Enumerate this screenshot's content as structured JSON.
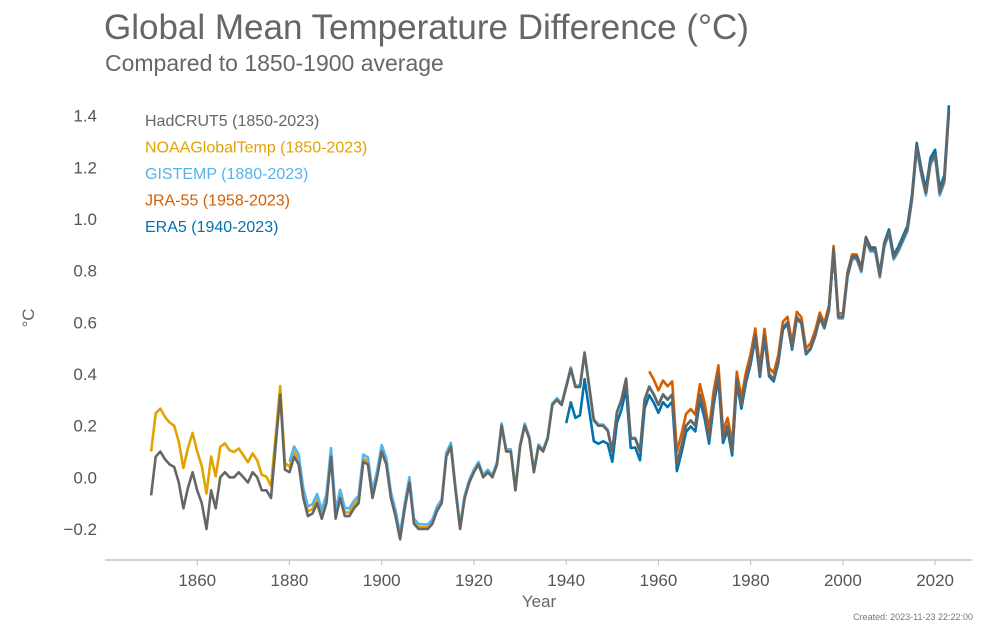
{
  "chart_data": {
    "type": "line",
    "title": "Global Mean Temperature Difference (°C)",
    "subtitle": "Compared to 1850-1900 average",
    "xlabel": "Year",
    "ylabel": "°C",
    "xlim": [
      1840,
      2028
    ],
    "ylim": [
      -0.32,
      1.48
    ],
    "x_ticks": [
      1860,
      1880,
      1900,
      1920,
      1940,
      1960,
      1980,
      2000,
      2020
    ],
    "y_ticks": [
      -0.2,
      0.0,
      0.2,
      0.4,
      0.6,
      0.8,
      1.0,
      1.2,
      1.4
    ],
    "y_tick_labels": [
      "−0.2",
      "0.0",
      "0.2",
      "0.4",
      "0.6",
      "0.8",
      "1.0",
      "1.2",
      "1.4"
    ],
    "grid": false,
    "legend_placement": "top-left",
    "anchor_points": [
      [
        1850,
        -0.07
      ],
      [
        1851,
        0.08
      ],
      [
        1852,
        0.1
      ],
      [
        1853,
        0.07
      ],
      [
        1854,
        0.05
      ],
      [
        1855,
        0.04
      ],
      [
        1856,
        -0.02
      ],
      [
        1857,
        -0.12
      ],
      [
        1858,
        -0.04
      ],
      [
        1859,
        0.02
      ],
      [
        1860,
        -0.05
      ],
      [
        1861,
        -0.1
      ],
      [
        1862,
        -0.2
      ],
      [
        1863,
        -0.05
      ],
      [
        1864,
        -0.12
      ],
      [
        1865,
        0.0
      ],
      [
        1866,
        0.02
      ],
      [
        1867,
        0.0
      ],
      [
        1868,
        0.0
      ],
      [
        1869,
        0.02
      ],
      [
        1870,
        0.0
      ],
      [
        1871,
        -0.02
      ],
      [
        1872,
        0.02
      ],
      [
        1873,
        0.0
      ],
      [
        1874,
        -0.05
      ],
      [
        1875,
        -0.05
      ],
      [
        1876,
        -0.08
      ],
      [
        1877,
        0.12
      ],
      [
        1878,
        0.32
      ],
      [
        1879,
        0.03
      ],
      [
        1880,
        0.02
      ],
      [
        1881,
        0.08
      ],
      [
        1882,
        0.05
      ],
      [
        1883,
        -0.08
      ],
      [
        1884,
        -0.15
      ],
      [
        1885,
        -0.14
      ],
      [
        1886,
        -0.1
      ],
      [
        1887,
        -0.16
      ],
      [
        1888,
        -0.1
      ],
      [
        1889,
        0.08
      ],
      [
        1890,
        -0.16
      ],
      [
        1891,
        -0.08
      ],
      [
        1892,
        -0.15
      ],
      [
        1893,
        -0.15
      ],
      [
        1894,
        -0.12
      ],
      [
        1895,
        -0.1
      ],
      [
        1896,
        0.06
      ],
      [
        1897,
        0.05
      ],
      [
        1898,
        -0.08
      ],
      [
        1899,
        0.0
      ],
      [
        1900,
        0.1
      ],
      [
        1901,
        0.05
      ],
      [
        1902,
        -0.08
      ],
      [
        1903,
        -0.15
      ],
      [
        1904,
        -0.24
      ],
      [
        1905,
        -0.12
      ],
      [
        1906,
        -0.02
      ],
      [
        1907,
        -0.18
      ],
      [
        1908,
        -0.2
      ],
      [
        1909,
        -0.2
      ],
      [
        1910,
        -0.2
      ],
      [
        1911,
        -0.18
      ],
      [
        1912,
        -0.13
      ],
      [
        1913,
        -0.1
      ],
      [
        1914,
        0.08
      ],
      [
        1915,
        0.12
      ],
      [
        1916,
        -0.05
      ],
      [
        1917,
        -0.2
      ],
      [
        1918,
        -0.08
      ],
      [
        1919,
        -0.02
      ],
      [
        1920,
        0.02
      ],
      [
        1921,
        0.05
      ],
      [
        1922,
        0.0
      ],
      [
        1923,
        0.02
      ],
      [
        1924,
        0.0
      ],
      [
        1925,
        0.05
      ],
      [
        1926,
        0.2
      ],
      [
        1927,
        0.1
      ],
      [
        1928,
        0.1
      ],
      [
        1929,
        -0.05
      ],
      [
        1930,
        0.12
      ],
      [
        1931,
        0.2
      ],
      [
        1932,
        0.15
      ],
      [
        1933,
        0.02
      ],
      [
        1934,
        0.12
      ],
      [
        1935,
        0.1
      ],
      [
        1936,
        0.15
      ],
      [
        1937,
        0.28
      ],
      [
        1938,
        0.3
      ],
      [
        1939,
        0.28
      ],
      [
        1940,
        0.35
      ],
      [
        1941,
        0.42
      ],
      [
        1942,
        0.35
      ],
      [
        1943,
        0.35
      ],
      [
        1944,
        0.48
      ],
      [
        1945,
        0.35
      ],
      [
        1946,
        0.22
      ],
      [
        1947,
        0.2
      ],
      [
        1948,
        0.2
      ],
      [
        1949,
        0.18
      ],
      [
        1950,
        0.1
      ],
      [
        1951,
        0.25
      ],
      [
        1952,
        0.3
      ],
      [
        1953,
        0.38
      ],
      [
        1954,
        0.15
      ],
      [
        1955,
        0.15
      ],
      [
        1956,
        0.1
      ],
      [
        1957,
        0.3
      ],
      [
        1958,
        0.35
      ],
      [
        1959,
        0.32
      ],
      [
        1960,
        0.28
      ],
      [
        1961,
        0.32
      ],
      [
        1962,
        0.3
      ],
      [
        1963,
        0.32
      ],
      [
        1964,
        0.05
      ],
      [
        1965,
        0.12
      ],
      [
        1966,
        0.2
      ],
      [
        1967,
        0.22
      ],
      [
        1968,
        0.2
      ],
      [
        1969,
        0.32
      ],
      [
        1970,
        0.25
      ],
      [
        1971,
        0.15
      ],
      [
        1972,
        0.3
      ],
      [
        1973,
        0.4
      ],
      [
        1974,
        0.15
      ],
      [
        1975,
        0.2
      ],
      [
        1976,
        0.1
      ],
      [
        1977,
        0.38
      ],
      [
        1978,
        0.28
      ],
      [
        1979,
        0.38
      ],
      [
        1980,
        0.45
      ],
      [
        1981,
        0.55
      ],
      [
        1982,
        0.4
      ],
      [
        1983,
        0.55
      ],
      [
        1984,
        0.4
      ],
      [
        1985,
        0.38
      ],
      [
        1986,
        0.45
      ],
      [
        1987,
        0.58
      ],
      [
        1988,
        0.6
      ],
      [
        1989,
        0.5
      ],
      [
        1990,
        0.62
      ],
      [
        1991,
        0.6
      ],
      [
        1992,
        0.48
      ],
      [
        1993,
        0.5
      ],
      [
        1994,
        0.55
      ],
      [
        1995,
        0.62
      ],
      [
        1996,
        0.58
      ],
      [
        1997,
        0.65
      ],
      [
        1998,
        0.88
      ],
      [
        1999,
        0.62
      ],
      [
        2000,
        0.62
      ],
      [
        2001,
        0.78
      ],
      [
        2002,
        0.85
      ],
      [
        2003,
        0.85
      ],
      [
        2004,
        0.8
      ],
      [
        2005,
        0.92
      ],
      [
        2006,
        0.88
      ],
      [
        2007,
        0.88
      ],
      [
        2008,
        0.78
      ],
      [
        2009,
        0.9
      ],
      [
        2010,
        0.95
      ],
      [
        2011,
        0.85
      ],
      [
        2012,
        0.88
      ],
      [
        2013,
        0.92
      ],
      [
        2014,
        0.96
      ],
      [
        2015,
        1.08
      ],
      [
        2016,
        1.28
      ],
      [
        2017,
        1.18
      ],
      [
        2018,
        1.1
      ],
      [
        2019,
        1.22
      ],
      [
        2020,
        1.25
      ],
      [
        2021,
        1.1
      ],
      [
        2022,
        1.15
      ],
      [
        2023,
        1.42
      ]
    ],
    "series": [
      {
        "name": "HadCRUT5 (1850-2023)",
        "color": "#666666",
        "start": 1850,
        "end": 2023,
        "offsets": [
          [
            1850,
            0
          ]
        ]
      },
      {
        "name": "NOAAGlobalTemp (1850-2023)",
        "color": "#E2A300",
        "start": 1850,
        "end": 2023,
        "offsets": [
          [
            1850,
            0.17
          ],
          [
            1860,
            0.15
          ],
          [
            1877,
            0.04
          ],
          [
            1880,
            0.02
          ],
          [
            1925,
            0.0
          ],
          [
            2023,
            0.0
          ]
        ]
      },
      {
        "name": "GISTEMP (1880-2023)",
        "color": "#56B4E9",
        "start": 1880,
        "end": 2023,
        "offsets": [
          [
            1880,
            0.04
          ],
          [
            1920,
            0.01
          ],
          [
            2023,
            -0.01
          ]
        ]
      },
      {
        "name": "JRA-55 (1958-2023)",
        "color": "#D55E00",
        "start": 1958,
        "end": 2023,
        "offsets": [
          [
            1958,
            0.06
          ],
          [
            1975,
            0.03
          ],
          [
            2023,
            0.0
          ]
        ]
      },
      {
        "name": "ERA5 (1940-2023)",
        "color": "#0072B2",
        "start": 1940,
        "end": 2023,
        "offsets": [
          [
            1940,
            -0.14
          ],
          [
            1950,
            -0.04
          ],
          [
            1970,
            -0.02
          ],
          [
            2023,
            0.02
          ]
        ]
      }
    ],
    "created_label": "Created: 2023-11-23 22:22:00"
  }
}
